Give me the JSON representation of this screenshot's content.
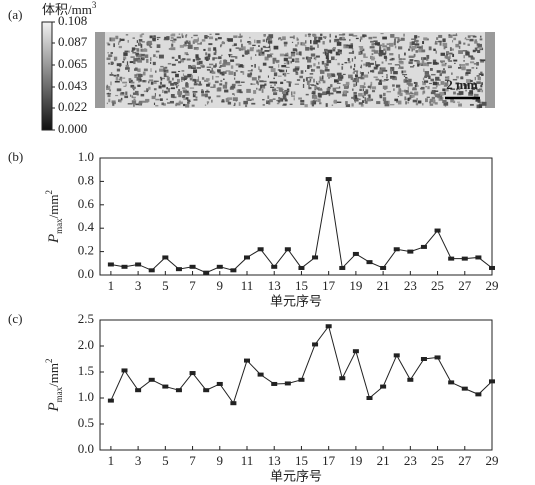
{
  "chart_data": [
    {
      "type": "colorbar",
      "panel": "(a)",
      "label": "体积/mm",
      "label_superscript": "3",
      "clim": [
        0,
        0.108
      ],
      "ticks": [
        {
          "value": 0,
          "label": "0.000"
        },
        0.022,
        0.043,
        0.065,
        0.087,
        0.108
      ],
      "scale_bar": "2 mm"
    },
    {
      "type": "line",
      "panel": "(b)",
      "color": "#222222",
      "ylabel": {
        "symbol": "P",
        "subscript": "max",
        "unit": "/mm",
        "superscript": "2"
      },
      "xlabel": "单元序号",
      "x": [
        1,
        2,
        3,
        4,
        5,
        6,
        7,
        8,
        9,
        10,
        11,
        12,
        13,
        14,
        15,
        16,
        17,
        18,
        19,
        20,
        21,
        22,
        23,
        24,
        25,
        26,
        27,
        28,
        29
      ],
      "values": [
        0.09,
        0.07,
        0.09,
        0.04,
        0.15,
        0.05,
        0.07,
        0.02,
        0.07,
        0.04,
        0.15,
        0.22,
        0.07,
        0.22,
        0.06,
        0.15,
        0.82,
        0.06,
        0.18,
        0.11,
        0.06,
        0.22,
        0.2,
        0.24,
        0.38,
        0.14,
        0.14,
        0.15,
        0.06
      ],
      "xlim": [
        0.2,
        29
      ],
      "xticks": [
        1,
        3,
        5,
        7,
        9,
        11,
        13,
        15,
        17,
        19,
        21,
        23,
        25,
        27,
        29
      ],
      "ylim": [
        0,
        1
      ],
      "yticks": [
        {
          "value": 0,
          "label": "0.0"
        },
        0.2,
        0.4,
        0.6,
        0.8,
        {
          "value": 1,
          "label": "1.0"
        }
      ]
    },
    {
      "type": "line",
      "panel": "(c)",
      "color": "#222222",
      "ylabel": {
        "symbol": "P",
        "subscript": "max",
        "unit": "/mm",
        "superscript": "2"
      },
      "xlabel": "单元序号",
      "x": [
        1,
        2,
        3,
        4,
        5,
        6,
        7,
        8,
        9,
        10,
        11,
        12,
        13,
        14,
        15,
        16,
        17,
        18,
        19,
        20,
        21,
        22,
        23,
        24,
        25,
        26,
        27,
        28,
        29
      ],
      "values": [
        0.95,
        1.53,
        1.15,
        1.35,
        1.22,
        1.15,
        1.48,
        1.15,
        1.27,
        0.9,
        1.72,
        1.45,
        1.27,
        1.28,
        1.35,
        2.03,
        2.38,
        1.38,
        1.9,
        1.0,
        1.22,
        1.82,
        1.35,
        1.75,
        1.78,
        1.3,
        1.18,
        1.07,
        1.32
      ],
      "xlim": [
        0.2,
        29
      ],
      "xticks": [
        1,
        3,
        5,
        7,
        9,
        11,
        13,
        15,
        17,
        19,
        21,
        23,
        25,
        27,
        29
      ],
      "ylim": [
        0,
        2.5
      ],
      "yticks": [
        {
          "value": 0,
          "label": "0.0"
        },
        0.5,
        {
          "value": 1,
          "label": "1.0"
        },
        1.5,
        {
          "value": 2,
          "label": "2.0"
        },
        2.5
      ]
    }
  ]
}
